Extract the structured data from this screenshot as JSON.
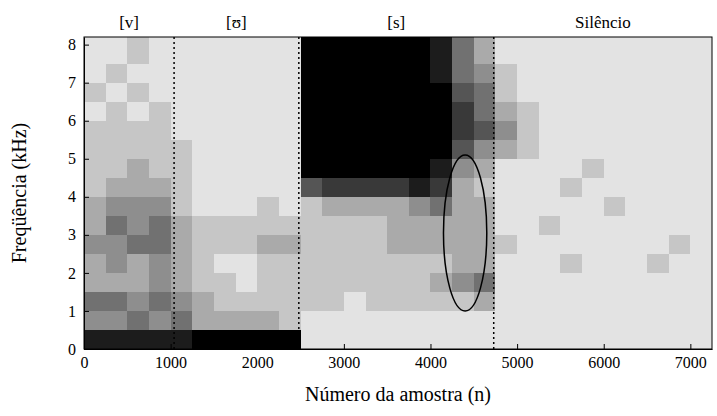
{
  "chart_data": {
    "type": "heatmap",
    "xlabel": "Número da amostra (n)",
    "ylabel": "Freqüência (kHz)",
    "xlim": [
      0,
      7250
    ],
    "ylim": [
      0,
      8.2
    ],
    "xticks": [
      0,
      1000,
      2000,
      3000,
      4000,
      5000,
      6000,
      7000
    ],
    "yticks": [
      0,
      1,
      2,
      3,
      4,
      5,
      6,
      7,
      8
    ],
    "x_edges": [
      0,
      250,
      500,
      750,
      1000,
      1250,
      1500,
      1750,
      2000,
      2250,
      2500,
      2750,
      3000,
      3250,
      3500,
      3750,
      4000,
      4250,
      4500,
      4750,
      5000,
      5250,
      5500,
      5750,
      6000,
      6250,
      6500,
      6750,
      7000,
      7250
    ],
    "y_edges": [
      0,
      0.5,
      1,
      1.5,
      2,
      2.5,
      3,
      3.5,
      4,
      4.5,
      5,
      5.5,
      6,
      6.5,
      7,
      7.5,
      8.2
    ],
    "z_range": [
      0,
      9
    ],
    "cells": [
      [
        8,
        8,
        8,
        8,
        8,
        9,
        9,
        9,
        9,
        9,
        1,
        1,
        1,
        1,
        1,
        1,
        1,
        1,
        1,
        1,
        1,
        1,
        1,
        1,
        1,
        1,
        1,
        1,
        1
      ],
      [
        4,
        4,
        5,
        4,
        5,
        3,
        3,
        3,
        3,
        2,
        1,
        1,
        1,
        1,
        1,
        1,
        1,
        1,
        1,
        1,
        1,
        1,
        1,
        1,
        1,
        1,
        1,
        1,
        1
      ],
      [
        5,
        5,
        4,
        5,
        4,
        3,
        2,
        2,
        2,
        2,
        2,
        2,
        1,
        2,
        2,
        2,
        2,
        2,
        3,
        1,
        1,
        1,
        1,
        1,
        1,
        1,
        1,
        1,
        1
      ],
      [
        3,
        3,
        3,
        4,
        3,
        2,
        2,
        1,
        2,
        2,
        2,
        2,
        2,
        2,
        2,
        2,
        3,
        4,
        5,
        1,
        1,
        1,
        1,
        1,
        1,
        1,
        1,
        1,
        1
      ],
      [
        3,
        4,
        3,
        4,
        3,
        2,
        1,
        1,
        2,
        2,
        2,
        2,
        2,
        2,
        2,
        2,
        2,
        3,
        3,
        1,
        1,
        1,
        2,
        1,
        1,
        1,
        2,
        1,
        1
      ],
      [
        4,
        4,
        5,
        5,
        3,
        2,
        2,
        2,
        3,
        3,
        2,
        2,
        2,
        2,
        3,
        3,
        3,
        3,
        3,
        2,
        1,
        1,
        1,
        1,
        1,
        1,
        1,
        2,
        1
      ],
      [
        3,
        5,
        4,
        5,
        3,
        2,
        2,
        2,
        2,
        2,
        2,
        2,
        2,
        2,
        3,
        3,
        3,
        3,
        3,
        1,
        1,
        2,
        1,
        1,
        1,
        1,
        1,
        1,
        1
      ],
      [
        3,
        4,
        4,
        4,
        2,
        1,
        1,
        1,
        2,
        1,
        2,
        3,
        3,
        3,
        3,
        4,
        5,
        3,
        3,
        1,
        1,
        1,
        1,
        1,
        2,
        1,
        1,
        1,
        1
      ],
      [
        2,
        3,
        3,
        3,
        2,
        1,
        1,
        1,
        1,
        1,
        6,
        7,
        7,
        7,
        7,
        8,
        7,
        3,
        2,
        1,
        1,
        1,
        2,
        1,
        1,
        1,
        1,
        1,
        1
      ],
      [
        2,
        2,
        3,
        2,
        2,
        1,
        1,
        1,
        1,
        1,
        9,
        9,
        9,
        9,
        9,
        9,
        8,
        4,
        3,
        1,
        1,
        1,
        1,
        2,
        1,
        1,
        1,
        1,
        1
      ],
      [
        2,
        2,
        2,
        2,
        2,
        1,
        1,
        1,
        1,
        1,
        9,
        9,
        9,
        9,
        9,
        9,
        9,
        6,
        4,
        3,
        2,
        1,
        1,
        1,
        1,
        1,
        1,
        1,
        1
      ],
      [
        2,
        2,
        2,
        2,
        1,
        1,
        1,
        1,
        1,
        1,
        9,
        9,
        9,
        9,
        9,
        9,
        9,
        7,
        6,
        4,
        2,
        1,
        1,
        1,
        1,
        1,
        1,
        1,
        1
      ],
      [
        1,
        2,
        1,
        2,
        1,
        1,
        1,
        1,
        1,
        1,
        9,
        9,
        9,
        9,
        9,
        9,
        9,
        7,
        5,
        3,
        2,
        1,
        1,
        1,
        1,
        1,
        1,
        1,
        1
      ],
      [
        2,
        1,
        2,
        1,
        1,
        1,
        1,
        1,
        1,
        1,
        9,
        9,
        9,
        9,
        9,
        9,
        9,
        6,
        5,
        2,
        1,
        1,
        1,
        1,
        1,
        1,
        1,
        1,
        1
      ],
      [
        1,
        2,
        1,
        1,
        1,
        1,
        1,
        1,
        1,
        1,
        9,
        9,
        9,
        9,
        9,
        9,
        8,
        5,
        4,
        2,
        1,
        1,
        1,
        1,
        1,
        1,
        1,
        1,
        1
      ],
      [
        1,
        1,
        2,
        1,
        1,
        1,
        1,
        1,
        1,
        1,
        9,
        9,
        9,
        9,
        9,
        9,
        8,
        5,
        3,
        1,
        1,
        1,
        1,
        1,
        1,
        1,
        1,
        1,
        1
      ]
    ],
    "segments": [
      {
        "label": "[v]",
        "start": 0,
        "end": 1040
      },
      {
        "label": "[ʊ]",
        "start": 1040,
        "end": 2480
      },
      {
        "label": "[s]",
        "start": 2480,
        "end": 4730
      },
      {
        "label": "Silêncio",
        "start": 4730,
        "end": 7250
      }
    ],
    "ellipse": {
      "cx": 4400,
      "cy": 3.05,
      "rx": 250,
      "ry": 2.05
    }
  }
}
